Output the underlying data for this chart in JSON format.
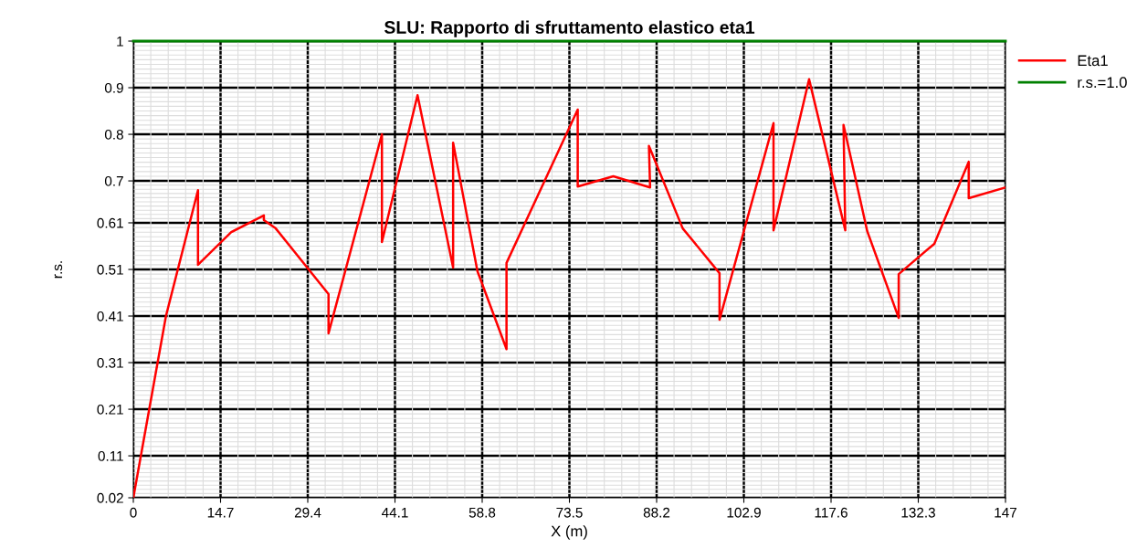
{
  "chart_data": {
    "type": "line",
    "title": "SLU: Rapporto di sfruttamento elastico eta1",
    "xlabel": "X (m)",
    "ylabel": "r.s.",
    "series": [
      {
        "name": "Eta1",
        "color": "#ff0000",
        "x": [
          0,
          5.5,
          10.9,
          10.9,
          16.5,
          22.0,
          22.0,
          24.0,
          32.9,
          32.9,
          41.9,
          41.9,
          47.9,
          53.9,
          53.9,
          58.0,
          62.9,
          62.9,
          74.9,
          74.9,
          80.9,
          87.1,
          86.9,
          92.6,
          98.8,
          98.8,
          107.9,
          107.9,
          113.9,
          120.0,
          119.7,
          123.7,
          129.0,
          129.0,
          135.0,
          140.8,
          140.8,
          147
        ],
        "values": [
          0.02,
          0.41,
          0.68,
          0.52,
          0.59,
          0.626,
          0.616,
          0.598,
          0.457,
          0.373,
          0.8,
          0.569,
          0.884,
          0.514,
          0.782,
          0.506,
          0.339,
          0.524,
          0.853,
          0.688,
          0.71,
          0.686,
          0.775,
          0.598,
          0.502,
          0.402,
          0.824,
          0.594,
          0.918,
          0.594,
          0.82,
          0.592,
          0.406,
          0.5,
          0.565,
          0.741,
          0.663,
          0.686
        ]
      }
    ],
    "ref_lines": [
      {
        "axis": "y",
        "value": 1,
        "label": "r.s.=1.0",
        "color": "#008000",
        "line_style": "solid"
      }
    ],
    "xlim": [
      0,
      147
    ],
    "xticks": [
      0,
      14.7,
      29.4,
      44.1,
      58.8,
      73.5,
      88.2,
      102.9,
      117.6,
      132.3,
      147
    ],
    "ylim": [
      0.02,
      1
    ],
    "yticks": [
      0.02,
      0.11,
      0.21,
      0.31,
      0.41,
      0.51,
      0.61,
      0.7,
      0.8,
      0.9,
      1
    ],
    "grid": true,
    "legend": "top right",
    "marker": "none",
    "line_style": "solid"
  }
}
